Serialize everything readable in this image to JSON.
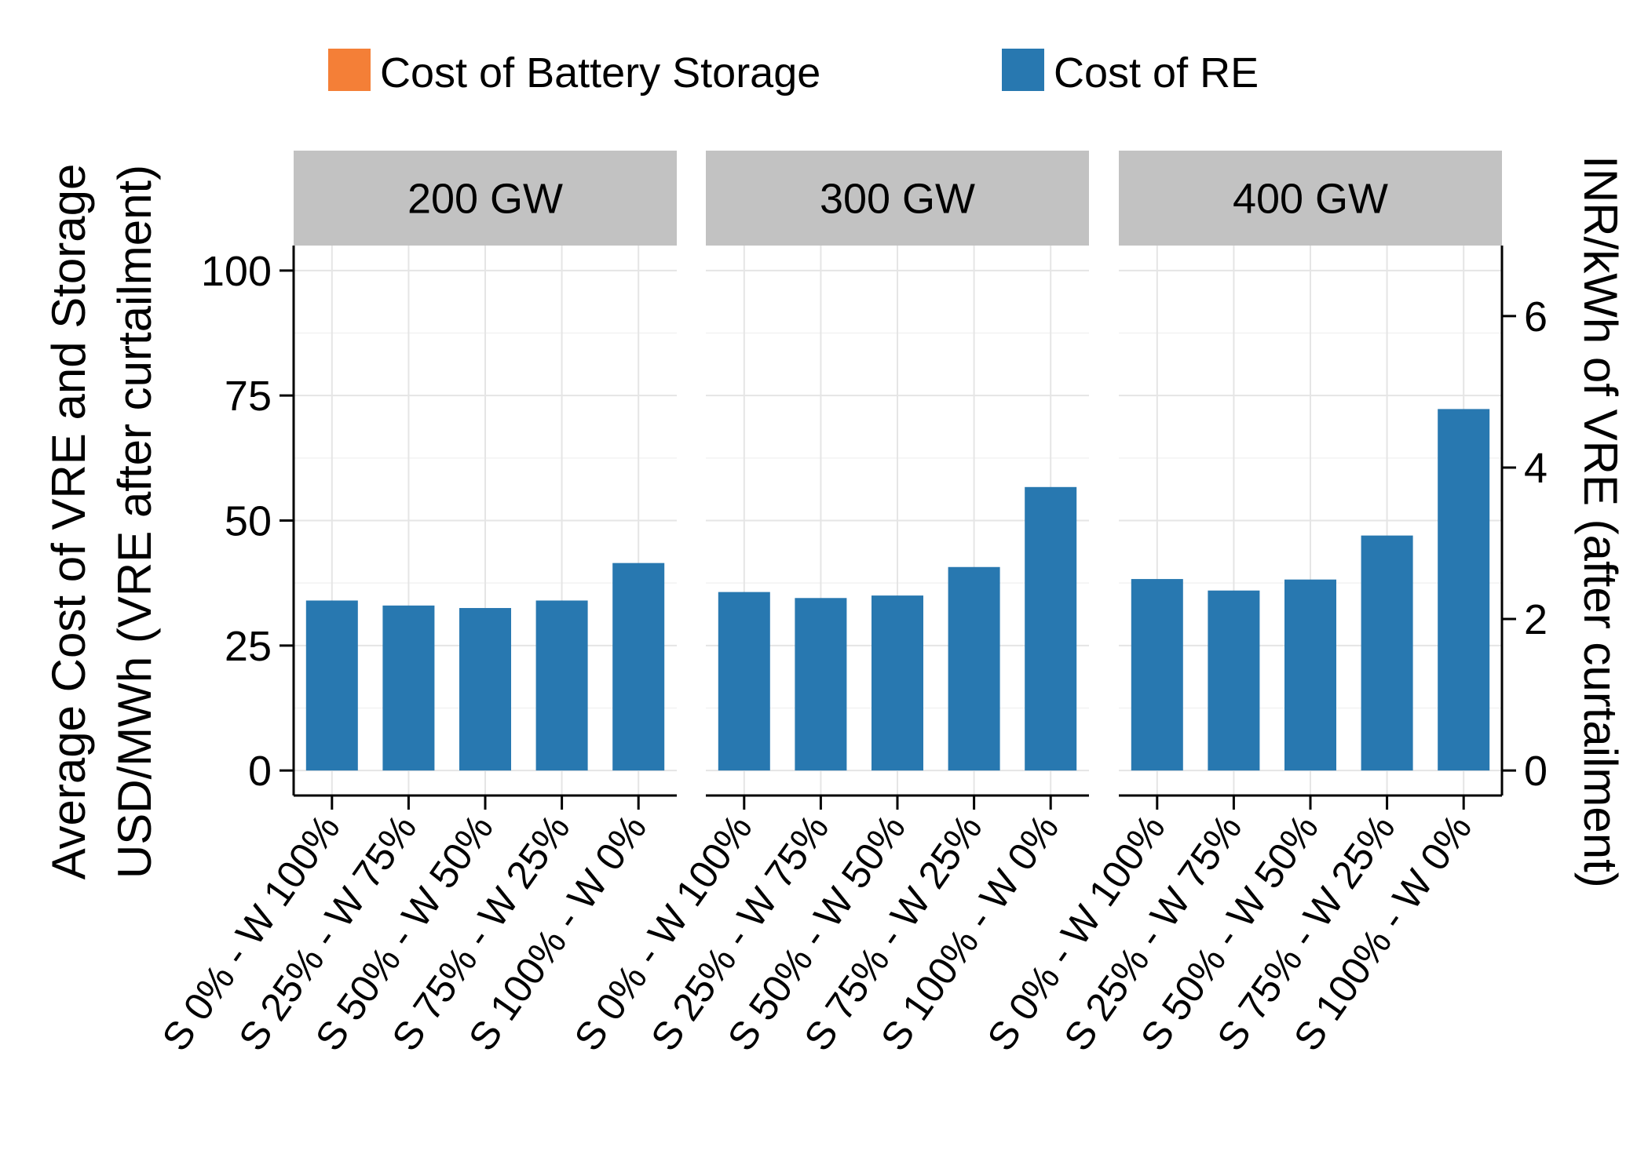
{
  "chart_data": {
    "type": "bar",
    "legend": {
      "position": "top",
      "items": [
        {
          "label": "Cost of Battery Storage",
          "color": "#F47F37"
        },
        {
          "label": "Cost of RE",
          "color": "#2878B0"
        }
      ]
    },
    "ylabel_line1": "Average Cost of VRE and Storage",
    "ylabel_line2": "USD/MWh (VRE after curtailment)",
    "y2label": "INR/kWh of VRE (after curtailment)",
    "ylim": [
      -5,
      105
    ],
    "yticks": [
      0,
      25,
      50,
      75,
      100
    ],
    "y2ticks": [
      {
        "label": "0",
        "value": 0
      },
      {
        "label": "2",
        "value": 30.3
      },
      {
        "label": "4",
        "value": 60.6
      },
      {
        "label": "6",
        "value": 90.9
      }
    ],
    "categories": [
      "S 0% - W 100%",
      "S 25% - W 75%",
      "S 50% - W 50%",
      "S 75% - W 25%",
      "S 100% - W 0%"
    ],
    "grid": true,
    "panels": [
      {
        "title": "200 GW",
        "series": [
          {
            "name": "Cost of Battery Storage",
            "values": [
              0,
              0,
              0,
              0,
              0
            ]
          },
          {
            "name": "Cost of RE",
            "values": [
              34,
              33,
              32.5,
              34,
              41.5
            ]
          }
        ]
      },
      {
        "title": "300 GW",
        "series": [
          {
            "name": "Cost of Battery Storage",
            "values": [
              0,
              0,
              0,
              0,
              0
            ]
          },
          {
            "name": "Cost of RE",
            "values": [
              35.7,
              34.5,
              35,
              40.7,
              56.7
            ]
          }
        ]
      },
      {
        "title": "400 GW",
        "series": [
          {
            "name": "Cost of Battery Storage",
            "values": [
              0,
              0,
              0,
              0,
              0
            ]
          },
          {
            "name": "Cost of RE",
            "values": [
              38.3,
              36,
              38.2,
              47,
              72.3
            ]
          }
        ]
      }
    ]
  }
}
